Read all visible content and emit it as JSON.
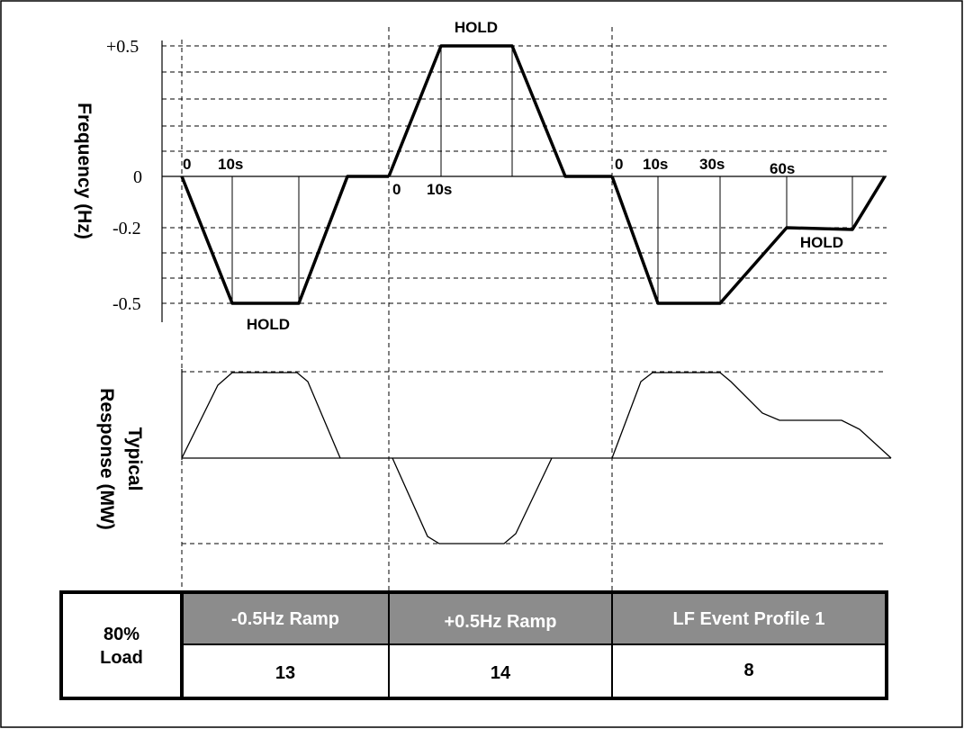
{
  "frequency_chart": {
    "axis_title": "Frequency (Hz)",
    "ticks": [
      "+0.5",
      "0",
      "-0.2",
      "-0.5"
    ],
    "profiles": [
      {
        "hold_label": "HOLD",
        "time_labels": [
          "0",
          "10s"
        ]
      },
      {
        "hold_label": "HOLD",
        "time_labels": [
          "0",
          "10s"
        ]
      },
      {
        "hold_label": "HOLD",
        "time_labels": [
          "0",
          "10s",
          "30s",
          "60s"
        ]
      }
    ]
  },
  "response_chart": {
    "axis_title_line1": "Typical",
    "axis_title_line2": "Response (MW)"
  },
  "table": {
    "row_label_line1": "80%",
    "row_label_line2": "Load",
    "header_bg": "#8c8c8c",
    "columns": [
      {
        "header": "-0.5Hz Ramp",
        "value": "13"
      },
      {
        "header": "+0.5Hz Ramp",
        "value": "14"
      },
      {
        "header": "LF Event Profile 1",
        "value": "8"
      }
    ]
  }
}
